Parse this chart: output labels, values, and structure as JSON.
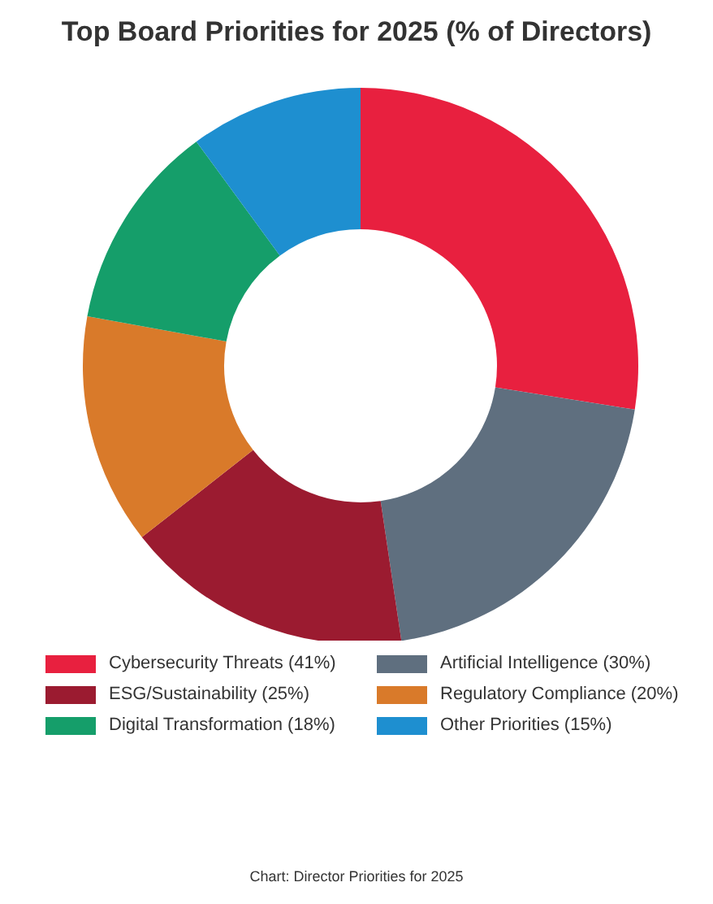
{
  "chart_data": {
    "type": "donut",
    "title": "Top Board Priorities for 2025 (% of Directors)",
    "categories": [
      "Cybersecurity Threats (41%)",
      "Artificial Intelligence (30%)",
      "ESG/Sustainability (25%)",
      "Regulatory Compliance (20%)",
      "Digital Transformation (18%)",
      "Other Priorities (15%)"
    ],
    "values": [
      41,
      30,
      25,
      20,
      18,
      15
    ],
    "colors": [
      "#e8203f",
      "#5f6f7f",
      "#9b1b30",
      "#d97a2a",
      "#159e6a",
      "#1e8fd0"
    ],
    "legend": "bottom",
    "annotations": [
      "Chart: Director Priorities for 2025"
    ]
  }
}
